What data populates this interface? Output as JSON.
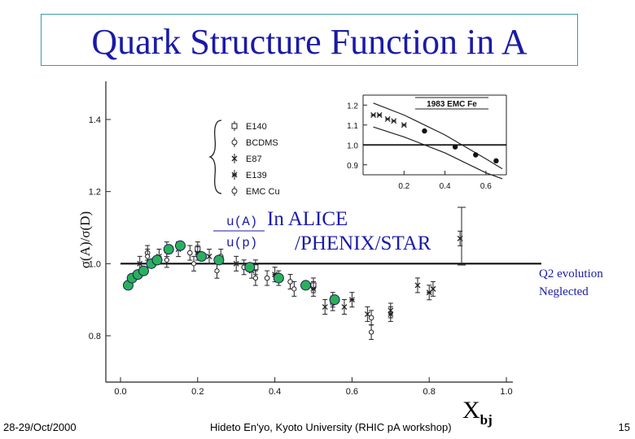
{
  "slide": {
    "title": "Quark Structure Function in A",
    "annotation_main": "In ALICE",
    "annotation_sub": "/PHENIX/STAR",
    "ratio_numerator": "u(A)",
    "ratio_denominator": "u(p)",
    "note_line1": "Q2 evolution",
    "note_line2": "Neglected",
    "x_label_main": "X",
    "x_label_sub": "bj",
    "footer_date": "28-29/Oct/2000",
    "footer_author": "Hideto En'yo, Kyoto University (RHIC pA workshop)",
    "page_number": "15"
  },
  "colors": {
    "title": "#1a1aa8",
    "frame": "#3a9aa8",
    "overlay_marker": "#2bb05a"
  },
  "chart_data": [
    {
      "type": "scatter",
      "title": "",
      "xlabel": "",
      "ylabel": "σ(A)/σ(D)",
      "xlim": [
        0.0,
        1.0
      ],
      "ylim": [
        0.7,
        1.45
      ],
      "xticks": [
        "0.0",
        "0.2",
        "0.4",
        "0.6",
        "0.8",
        "1.0"
      ],
      "yticks": [
        "0.8",
        "1.0",
        "1.2",
        "1.4"
      ],
      "legend": [
        "E140",
        "BCDMS",
        "E87",
        "E139",
        "EMC Cu"
      ],
      "legend_position": "top-left",
      "series": [
        {
          "name": "E140",
          "points": [
            [
              0.2,
              1.04
            ],
            [
              0.35,
              0.99
            ],
            [
              0.5,
              0.94
            ]
          ]
        },
        {
          "name": "BCDMS",
          "points": [
            [
              0.07,
              1.03
            ],
            [
              0.12,
              1.04
            ],
            [
              0.18,
              1.03
            ],
            [
              0.26,
              1.02
            ],
            [
              0.32,
              0.99
            ],
            [
              0.38,
              0.96
            ],
            [
              0.44,
              0.95
            ],
            [
              0.55,
              0.89
            ],
            [
              0.65,
              0.85
            ]
          ]
        },
        {
          "name": "E87",
          "points": [
            [
              0.05,
              1.0
            ],
            [
              0.15,
              1.04
            ],
            [
              0.23,
              1.02
            ],
            [
              0.34,
              0.98
            ],
            [
              0.41,
              0.96
            ],
            [
              0.53,
              0.88
            ],
            [
              0.58,
              0.88
            ],
            [
              0.64,
              0.86
            ],
            [
              0.7,
              0.87
            ],
            [
              0.77,
              0.94
            ],
            [
              0.81,
              0.93
            ],
            [
              0.88,
              1.07
            ]
          ]
        },
        {
          "name": "E139",
          "points": [
            [
              0.1,
              1.02
            ],
            [
              0.2,
              1.03
            ],
            [
              0.3,
              1.0
            ],
            [
              0.4,
              0.97
            ],
            [
              0.5,
              0.93
            ],
            [
              0.6,
              0.9
            ],
            [
              0.7,
              0.86
            ],
            [
              0.8,
              0.92
            ]
          ]
        },
        {
          "name": "EMC Cu",
          "points": [
            [
              0.07,
              1.02
            ],
            [
              0.12,
              1.01
            ],
            [
              0.19,
              1.0
            ],
            [
              0.25,
              0.98
            ],
            [
              0.35,
              0.96
            ],
            [
              0.45,
              0.93
            ],
            [
              0.55,
              0.9
            ],
            [
              0.65,
              0.81
            ]
          ]
        },
        {
          "name": "",
          "marker": "filled-green-circle",
          "points": [
            [
              0.02,
              0.94
            ],
            [
              0.03,
              0.96
            ],
            [
              0.045,
              0.97
            ],
            [
              0.06,
              0.98
            ],
            [
              0.08,
              1.0
            ],
            [
              0.095,
              1.01
            ],
            [
              0.125,
              1.04
            ],
            [
              0.155,
              1.05
            ],
            [
              0.21,
              1.02
            ],
            [
              0.255,
              1.01
            ],
            [
              0.335,
              0.99
            ],
            [
              0.41,
              0.96
            ],
            [
              0.48,
              0.94
            ],
            [
              0.555,
              0.9
            ]
          ]
        }
      ],
      "reference_line": 1.0
    },
    {
      "type": "line",
      "title": "1983 EMC Fe",
      "xlim": [
        0.0,
        0.7
      ],
      "ylim": [
        0.85,
        1.25
      ],
      "xticks": [
        "0.2",
        "0.4",
        "0.6"
      ],
      "yticks": [
        "0.9",
        "1.0",
        "1.1",
        "1.2"
      ],
      "reference_line": 1.0,
      "points": [
        [
          0.05,
          1.15
        ],
        [
          0.08,
          1.15
        ],
        [
          0.12,
          1.13
        ],
        [
          0.15,
          1.12
        ],
        [
          0.2,
          1.1
        ],
        [
          0.3,
          1.07
        ],
        [
          0.45,
          0.99
        ],
        [
          0.55,
          0.95
        ],
        [
          0.65,
          0.92
        ]
      ],
      "band_upper": [
        [
          0.05,
          1.21
        ],
        [
          0.2,
          1.15
        ],
        [
          0.4,
          1.05
        ],
        [
          0.6,
          0.93
        ],
        [
          0.68,
          0.88
        ]
      ],
      "band_lower": [
        [
          0.05,
          1.09
        ],
        [
          0.2,
          1.04
        ],
        [
          0.4,
          0.96
        ],
        [
          0.6,
          0.86
        ],
        [
          0.68,
          0.83
        ]
      ]
    }
  ]
}
